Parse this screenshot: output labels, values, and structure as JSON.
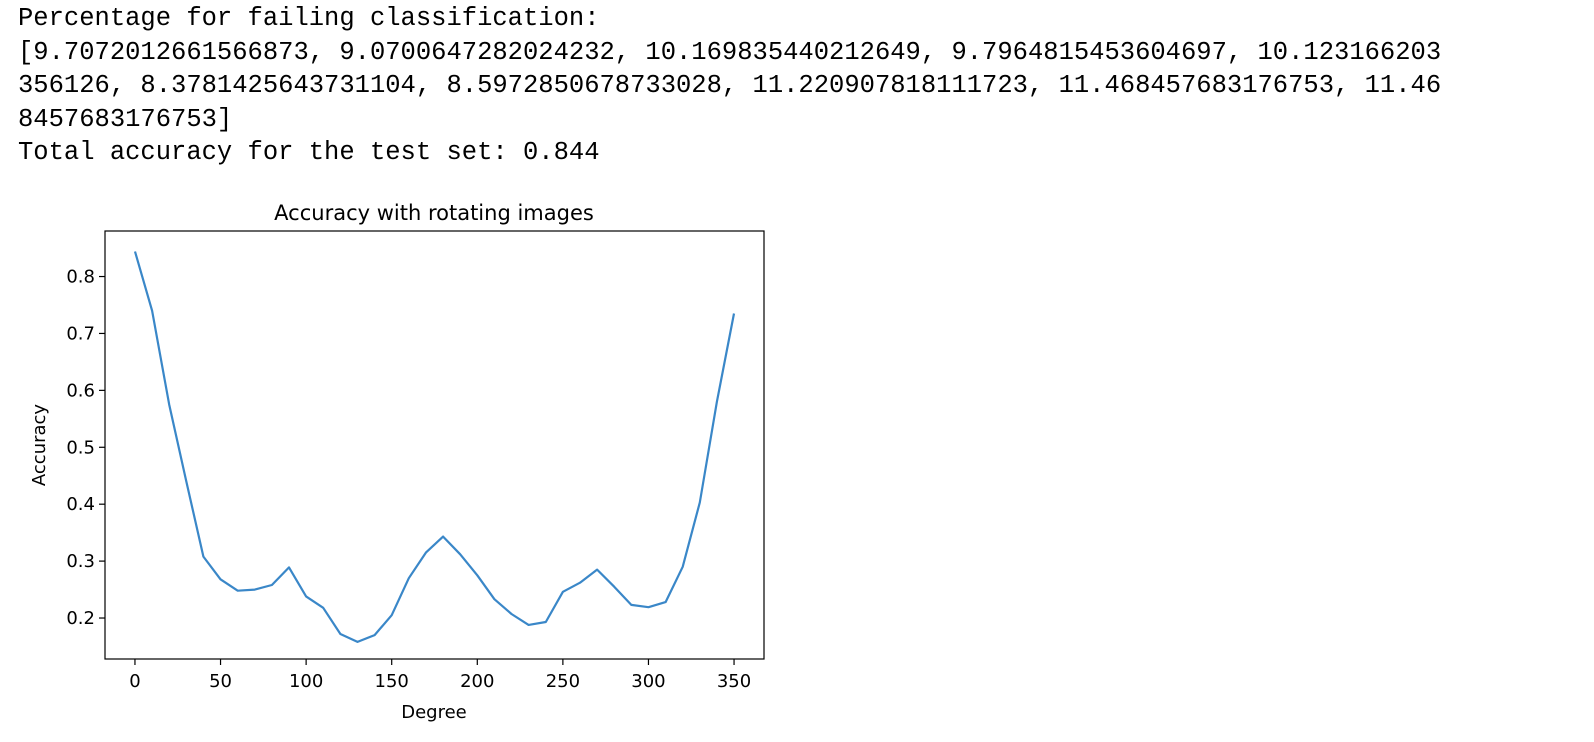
{
  "output": {
    "lines": [
      "Percentage for failing classification:",
      "[9.7072012661566873, 9.0700647282024232, 10.169835440212649, 9.7964815453604697, 10.123166203",
      "356126, 8.3781425643731104, 8.5972850678733028, 11.220907818111723, 11.468457683176753, 11.46",
      "8457683176753]",
      "Total accuracy for the test set: 0.844"
    ]
  },
  "chart_data": {
    "type": "line",
    "title": "Accuracy with rotating images",
    "xlabel": "Degree",
    "ylabel": "Accuracy",
    "xlim": [
      -17.5,
      367.5
    ],
    "ylim": [
      0.128,
      0.88
    ],
    "xticks": [
      0,
      50,
      100,
      150,
      200,
      250,
      300,
      350
    ],
    "yticks": [
      0.2,
      0.3,
      0.4,
      0.5,
      0.6,
      0.7,
      0.8
    ],
    "grid": false,
    "line_color": "#3a87c8",
    "x": [
      0,
      10,
      20,
      30,
      40,
      50,
      60,
      70,
      80,
      90,
      100,
      110,
      120,
      130,
      140,
      150,
      160,
      170,
      180,
      190,
      200,
      210,
      220,
      230,
      240,
      250,
      260,
      270,
      280,
      290,
      300,
      310,
      320,
      330,
      340,
      350
    ],
    "values": [
      0.844,
      0.74,
      0.575,
      0.44,
      0.308,
      0.268,
      0.248,
      0.25,
      0.258,
      0.289,
      0.238,
      0.218,
      0.172,
      0.158,
      0.17,
      0.205,
      0.27,
      0.315,
      0.343,
      0.312,
      0.275,
      0.233,
      0.207,
      0.188,
      0.193,
      0.246,
      0.262,
      0.285,
      0.255,
      0.223,
      0.219,
      0.228,
      0.29,
      0.403,
      0.58,
      0.735
    ]
  }
}
